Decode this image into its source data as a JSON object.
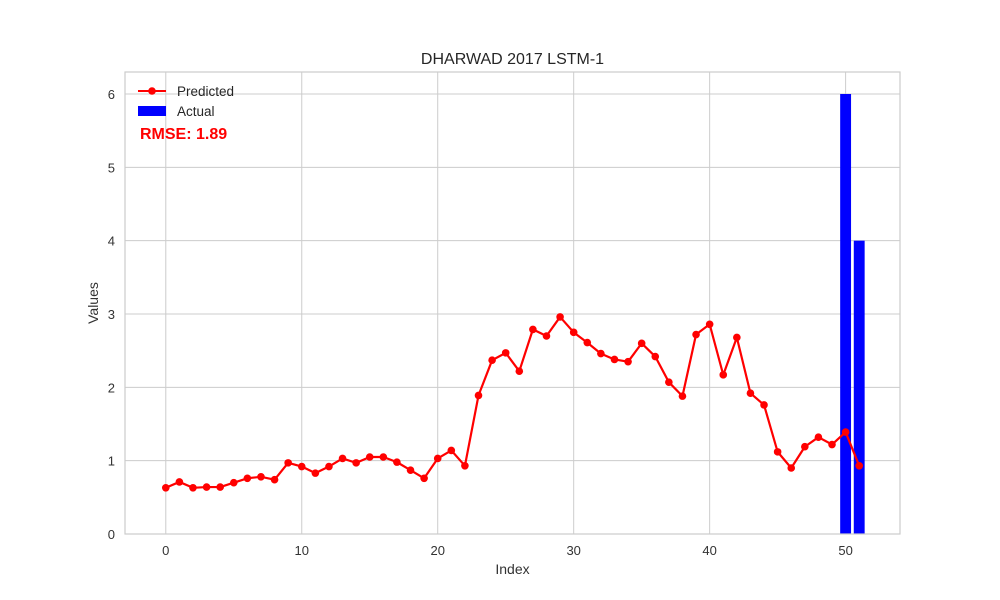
{
  "chart_data": {
    "type": "line",
    "title": "DHARWAD 2017 LSTM-1",
    "xlabel": "Index",
    "ylabel": "Values",
    "xlim": [
      -3,
      54
    ],
    "ylim": [
      0,
      6.3
    ],
    "xticks": [
      0,
      10,
      20,
      30,
      40,
      50
    ],
    "yticks": [
      0,
      1,
      2,
      3,
      4,
      5,
      6
    ],
    "grid": true,
    "legend_position": "top-left",
    "annotation": "RMSE: 1.89",
    "series": [
      {
        "name": "Predicted",
        "kind": "line-marker",
        "color": "#ff0000",
        "x": [
          0,
          1,
          2,
          3,
          4,
          5,
          6,
          7,
          8,
          9,
          10,
          11,
          12,
          13,
          14,
          15,
          16,
          17,
          18,
          19,
          20,
          21,
          22,
          23,
          24,
          25,
          26,
          27,
          28,
          29,
          30,
          31,
          32,
          33,
          34,
          35,
          36,
          37,
          38,
          39,
          40,
          41,
          42,
          43,
          44,
          45,
          46,
          47,
          48,
          49,
          50,
          51
        ],
        "values": [
          0.63,
          0.71,
          0.63,
          0.64,
          0.64,
          0.7,
          0.76,
          0.78,
          0.74,
          0.97,
          0.92,
          0.83,
          0.92,
          1.03,
          0.97,
          1.05,
          1.05,
          0.98,
          0.87,
          0.76,
          1.03,
          1.14,
          0.93,
          1.89,
          2.37,
          2.47,
          2.22,
          2.79,
          2.7,
          2.96,
          2.75,
          2.61,
          2.46,
          2.38,
          2.35,
          2.6,
          2.42,
          2.07,
          1.88,
          2.72,
          2.86,
          2.17,
          2.68,
          1.92,
          1.76,
          1.12,
          0.9,
          1.19,
          1.32,
          1.22,
          1.39,
          0.93
        ]
      },
      {
        "name": "Actual",
        "kind": "bar",
        "color": "#0000ff",
        "x": [
          50,
          51
        ],
        "values": [
          6,
          4
        ]
      }
    ]
  }
}
